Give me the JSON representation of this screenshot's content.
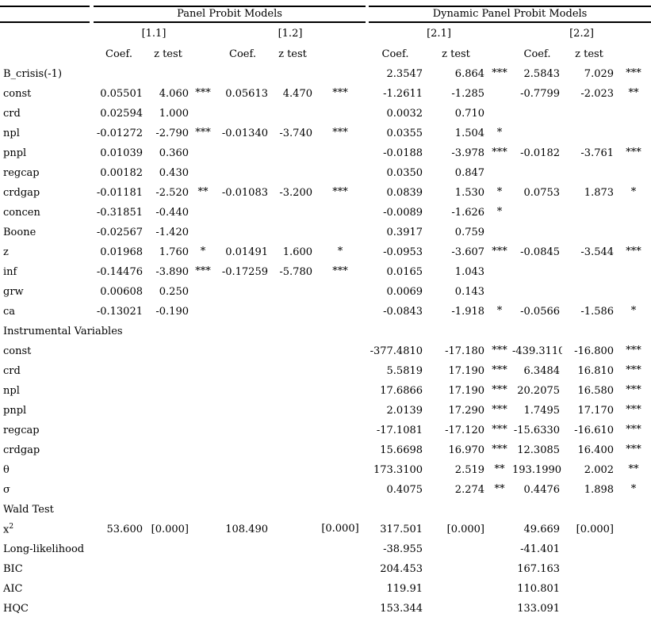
{
  "table": {
    "groups": [
      {
        "label": "Panel Probit Models",
        "model_ids": [
          "[1.1]",
          "[1.2]"
        ]
      },
      {
        "label": "Dynamic Panel Probit Models",
        "model_ids": [
          "[2.1]",
          "[2.2]"
        ]
      }
    ],
    "col_headers": {
      "coef": "Coef.",
      "z": "z test"
    },
    "rows": [
      {
        "type": "data",
        "label": "B_crisis(-1)",
        "cells": [
          "",
          "",
          "",
          "",
          "",
          "",
          "2.3547",
          "6.864",
          "***",
          "2.5843",
          "7.029",
          "***"
        ]
      },
      {
        "type": "data",
        "label": "const",
        "cells": [
          "0.05501",
          "4.060",
          "***",
          "0.05613",
          "4.470",
          "***",
          "-1.2611",
          "-1.285",
          "",
          "-0.7799",
          "-2.023",
          "**"
        ]
      },
      {
        "type": "data",
        "label": "crd",
        "cells": [
          "0.02594",
          "1.000",
          "",
          "",
          "",
          "",
          "0.0032",
          "0.710",
          "",
          "",
          "",
          ""
        ]
      },
      {
        "type": "data",
        "label": "npl",
        "cells": [
          "-0.01272",
          "-2.790",
          "***",
          "-0.01340",
          "-3.740",
          "***",
          "0.0355",
          "1.504",
          "*",
          "",
          "",
          ""
        ]
      },
      {
        "type": "data",
        "label": "pnpl",
        "cells": [
          "0.01039",
          "0.360",
          "",
          "",
          "",
          "",
          "-0.0188",
          "-3.978",
          "***",
          "-0.0182",
          "-3.761",
          "***"
        ]
      },
      {
        "type": "data",
        "label": "regcap",
        "cells": [
          "0.00182",
          "0.430",
          "",
          "",
          "",
          "",
          "0.0350",
          "0.847",
          "",
          "",
          "",
          ""
        ]
      },
      {
        "type": "data",
        "label": "crdgap",
        "cells": [
          "-0.01181",
          "-2.520",
          "**",
          "-0.01083",
          "-3.200",
          "***",
          "0.0839",
          "1.530",
          "*",
          "0.0753",
          "1.873",
          "*"
        ]
      },
      {
        "type": "data",
        "label": "concen",
        "cells": [
          "-0.31851",
          "-0.440",
          "",
          "",
          "",
          "",
          "-0.0089",
          "-1.626",
          "*",
          "",
          "",
          ""
        ]
      },
      {
        "type": "data",
        "label": "Boone",
        "cells": [
          "-0.02567",
          "-1.420",
          "",
          "",
          "",
          "",
          "0.3917",
          "0.759",
          "",
          "",
          "",
          ""
        ]
      },
      {
        "type": "data",
        "label": "z",
        "cells": [
          "0.01968",
          "1.760",
          "*",
          "0.01491",
          "1.600",
          "*",
          "-0.0953",
          "-3.607",
          "***",
          "-0.0845",
          "-3.544",
          "***"
        ]
      },
      {
        "type": "data",
        "label": "inf",
        "cells": [
          "-0.14476",
          "-3.890",
          "***",
          "-0.17259",
          "-5.780",
          "***",
          "0.0165",
          "1.043",
          "",
          "",
          "",
          ""
        ]
      },
      {
        "type": "data",
        "label": "grw",
        "cells": [
          "0.00608",
          "0.250",
          "",
          "",
          "",
          "",
          "0.0069",
          "0.143",
          "",
          "",
          "",
          ""
        ]
      },
      {
        "type": "data",
        "label": "ca",
        "cells": [
          "-0.13021",
          "-0.190",
          "",
          "",
          "",
          "",
          "-0.0843",
          "-1.918",
          "*",
          "-0.0566",
          "-1.586",
          "*"
        ]
      },
      {
        "type": "section",
        "label": "Instrumental Variables"
      },
      {
        "type": "data",
        "label": "const",
        "cells": [
          "",
          "",
          "",
          "",
          "",
          "",
          "-377.4810",
          "-17.180",
          "***",
          "-439.3110",
          "-16.800",
          "***"
        ]
      },
      {
        "type": "data",
        "label": "crd",
        "cells": [
          "",
          "",
          "",
          "",
          "",
          "",
          "5.5819",
          "17.190",
          "***",
          "6.3484",
          "16.810",
          "***"
        ]
      },
      {
        "type": "data",
        "label": "npl",
        "cells": [
          "",
          "",
          "",
          "",
          "",
          "",
          "17.6866",
          "17.190",
          "***",
          "20.2075",
          "16.580",
          "***"
        ]
      },
      {
        "type": "data",
        "label": "pnpl",
        "cells": [
          "",
          "",
          "",
          "",
          "",
          "",
          "2.0139",
          "17.290",
          "***",
          "1.7495",
          "17.170",
          "***"
        ]
      },
      {
        "type": "data",
        "label": "regcap",
        "cells": [
          "",
          "",
          "",
          "",
          "",
          "",
          "-17.1081",
          "-17.120",
          "***",
          "-15.6330",
          "-16.610",
          "***"
        ]
      },
      {
        "type": "data",
        "label": "crdgap",
        "cells": [
          "",
          "",
          "",
          "",
          "",
          "",
          "15.6698",
          "16.970",
          "***",
          "12.3085",
          "16.400",
          "***"
        ]
      },
      {
        "type": "data",
        "label": "θ",
        "cells": [
          "",
          "",
          "",
          "",
          "",
          "",
          "173.3100",
          "2.519",
          "**",
          "193.1990",
          "2.002",
          "**"
        ]
      },
      {
        "type": "data",
        "label": "σ",
        "cells": [
          "",
          "",
          "",
          "",
          "",
          "",
          "0.4075",
          "2.274",
          "**",
          "0.4476",
          "1.898",
          "*"
        ]
      },
      {
        "type": "section",
        "label": "Wald Test"
      },
      {
        "type": "data",
        "label": "x",
        "label_sup": "2",
        "cells": [
          "53.600",
          "[0.000]",
          "",
          "108.490",
          "",
          "[0.000]",
          "317.501",
          "[0.000]",
          "",
          "49.669",
          "[0.000]",
          ""
        ]
      },
      {
        "type": "data",
        "label": "Long-likelihood",
        "cells": [
          "",
          "",
          "",
          "",
          "",
          "",
          "-38.955",
          "",
          "",
          "-41.401",
          "",
          ""
        ]
      },
      {
        "type": "data",
        "label": "BIC",
        "cells": [
          "",
          "",
          "",
          "",
          "",
          "",
          "204.453",
          "",
          "",
          "167.163",
          "",
          ""
        ]
      },
      {
        "type": "data",
        "label": "AIC",
        "cells": [
          "",
          "",
          "",
          "",
          "",
          "",
          "119.91",
          "",
          "",
          "110.801",
          "",
          ""
        ]
      },
      {
        "type": "data",
        "label": "HQC",
        "cells": [
          "",
          "",
          "",
          "",
          "",
          "",
          "153.344",
          "",
          "",
          "133.091",
          "",
          ""
        ]
      }
    ]
  }
}
